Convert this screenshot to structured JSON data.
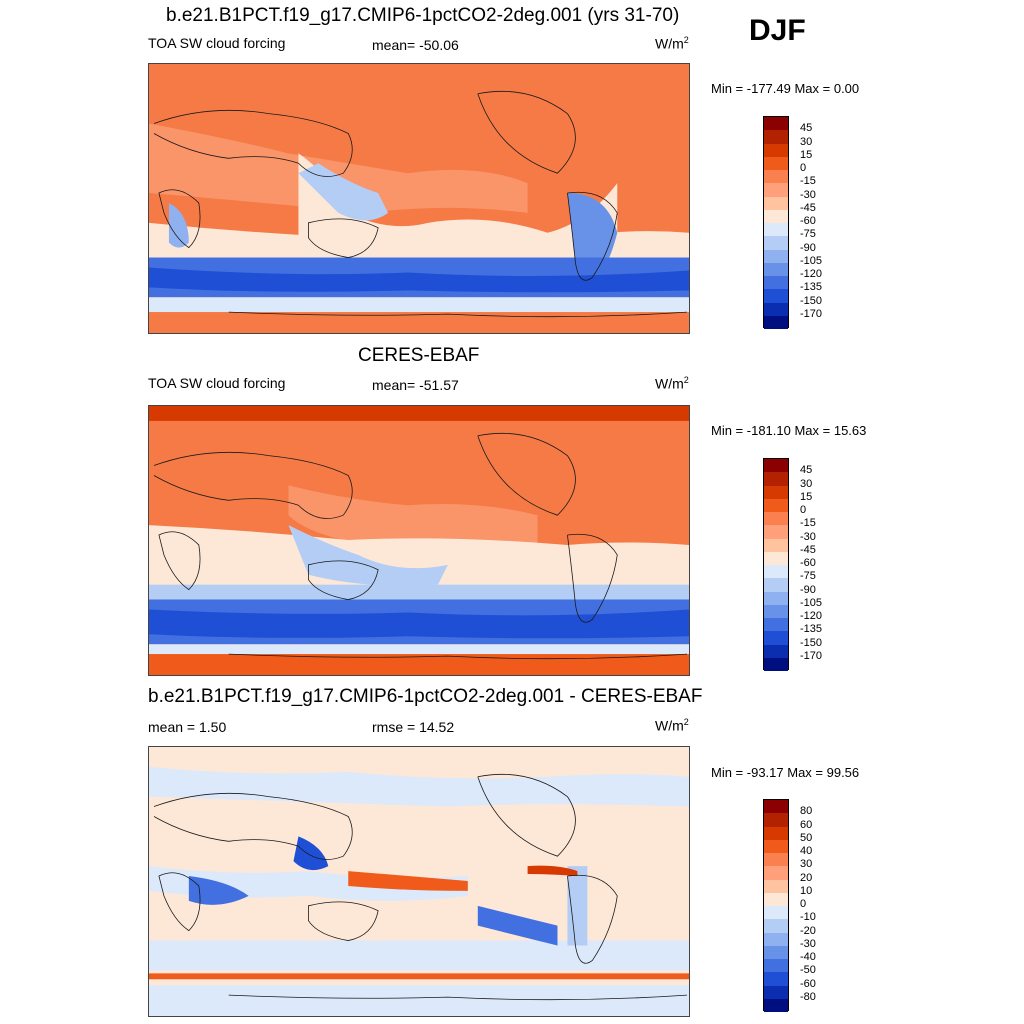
{
  "season": "DJF",
  "panels": [
    {
      "title": "b.e21.B1PCT.f19_g17.CMIP6-1pctCO2-2deg.001 (yrs 31-70)",
      "left_label": "TOA SW cloud forcing",
      "center_label": "mean= -50.06",
      "units": "W/m",
      "units_sup": "2",
      "minmax": "Min = -177.49 Max =   0.00",
      "colorbar": {
        "labels": [
          "45",
          "30",
          "15",
          "0",
          "-15",
          "-30",
          "-45",
          "-60",
          "-75",
          "-90",
          "-105",
          "-120",
          "-135",
          "-150",
          "-170"
        ],
        "colors": [
          "#8b0000",
          "#b22200",
          "#d63a00",
          "#f05a1a",
          "#fa8050",
          "#ffa07a",
          "#ffc3a0",
          "#fde8d8",
          "#dbe9fb",
          "#b4cdf5",
          "#8fb1ef",
          "#6892e8",
          "#4270e0",
          "#1f4fd4",
          "#0b2db0",
          "#000f80"
        ]
      }
    },
    {
      "title": "CERES-EBAF",
      "left_label": "TOA SW cloud forcing",
      "center_label": "mean= -51.57",
      "units": "W/m",
      "units_sup": "2",
      "minmax": "Min = -181.10 Max =  15.63",
      "colorbar": {
        "labels": [
          "45",
          "30",
          "15",
          "0",
          "-15",
          "-30",
          "-45",
          "-60",
          "-75",
          "-90",
          "-105",
          "-120",
          "-135",
          "-150",
          "-170"
        ],
        "colors": [
          "#8b0000",
          "#b22200",
          "#d63a00",
          "#f05a1a",
          "#fa8050",
          "#ffa07a",
          "#ffc3a0",
          "#fde8d8",
          "#dbe9fb",
          "#b4cdf5",
          "#8fb1ef",
          "#6892e8",
          "#4270e0",
          "#1f4fd4",
          "#0b2db0",
          "#000f80"
        ]
      }
    },
    {
      "title": "b.e21.B1PCT.f19_g17.CMIP6-1pctCO2-2deg.001 - CERES-EBAF",
      "left_label": "mean =   1.50",
      "center_label": "rmse =  14.52",
      "units": "W/m",
      "units_sup": "2",
      "minmax": "Min = -93.17 Max =  99.56",
      "colorbar": {
        "labels": [
          "80",
          "60",
          "50",
          "40",
          "30",
          "20",
          "10",
          "0",
          "-10",
          "-20",
          "-30",
          "-40",
          "-50",
          "-60",
          "-80"
        ],
        "colors": [
          "#8b0000",
          "#b22200",
          "#d63a00",
          "#f05a1a",
          "#fa8050",
          "#ffa07a",
          "#ffc3a0",
          "#fde8d8",
          "#dbe9fb",
          "#b4cdf5",
          "#8fb1ef",
          "#6892e8",
          "#4270e0",
          "#1f4fd4",
          "#0b2db0",
          "#000f80"
        ]
      }
    }
  ]
}
